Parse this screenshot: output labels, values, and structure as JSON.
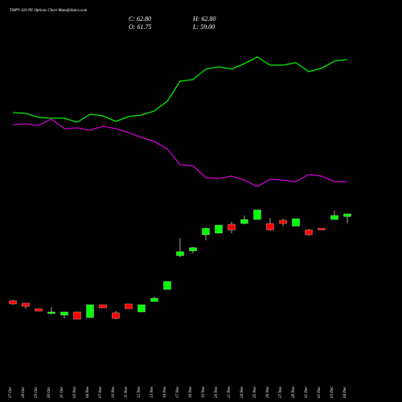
{
  "chart_data": {
    "type": "candlestick",
    "title": "TMPV 420 PE Options Chart MunafaSutra.com",
    "header": {
      "close": "C: 62.80",
      "open": "O: 61.75",
      "high": "H: 62.80",
      "low": "L: 59.00"
    },
    "categories": [
      "27 Oct",
      "28 Oct",
      "29 Oct",
      "30 Oct",
      "31 Oct",
      "03 Nov",
      "04 Nov",
      "07 Nov",
      "10 Nov",
      "11 Nov",
      "12 Nov",
      "13 Nov",
      "14 Nov",
      "17 Nov",
      "18 Nov",
      "19 Nov",
      "20 Nov",
      "21 Nov",
      "24 Nov",
      "25 Nov",
      "26 Nov",
      "27 Nov",
      "28 Nov",
      "01 Dec",
      "02 Dec",
      "03 Dec",
      "04 Dec"
    ],
    "up_color": "#00ff00",
    "down_color": "#ff0000",
    "open": [
      28.24,
      27.28,
      25.04,
      23.12,
      22.48,
      23.76,
      21.52,
      26.64,
      23.44,
      26.96,
      23.76,
      27.92,
      32.72,
      46.16,
      48.08,
      54.48,
      55.12,
      58.64,
      58.96,
      60.56,
      58.96,
      60.24,
      57.92,
      56.4,
      57.04,
      60.56,
      61.75
    ],
    "high": [
      28.56,
      27.28,
      25.04,
      25.68,
      23.76,
      23.76,
      26.64,
      26.64,
      24.08,
      26.96,
      26.64,
      29.84,
      35.92,
      53.2,
      49.68,
      57.36,
      58.32,
      59.6,
      62.16,
      64.4,
      61.2,
      60.88,
      60.88,
      56.72,
      57.04,
      64.08,
      62.8
    ],
    "low": [
      26.64,
      25.04,
      24.08,
      22.8,
      21.2,
      20.88,
      21.52,
      25.36,
      20.88,
      25.04,
      23.76,
      27.92,
      32.72,
      45.52,
      47.12,
      52.24,
      55.12,
      55.12,
      58.64,
      60.56,
      56.08,
      57.92,
      57.92,
      54.16,
      56.4,
      60.56,
      59.0
    ],
    "close": [
      26.96,
      26.0,
      24.08,
      23.76,
      23.76,
      20.88,
      26.64,
      25.36,
      21.2,
      25.04,
      26.64,
      29.2,
      35.92,
      47.76,
      49.36,
      57.04,
      58.32,
      56.4,
      60.56,
      64.4,
      56.4,
      58.96,
      60.88,
      54.48,
      56.4,
      62.16,
      62.8
    ],
    "ylim": [
      -12.08,
      147.92
    ],
    "y2lim": [
      0,
      100
    ],
    "series": [
      {
        "color": "#00ee00",
        "axis": "y2",
        "values": [
          72,
          71.8,
          70.8,
          70.6,
          70.6,
          69.6,
          71.6,
          71.2,
          69.8,
          71,
          71.4,
          72.4,
          74.8,
          79.8,
          80.2,
          82.8,
          83.4,
          82.8,
          84.2,
          85.8,
          83.8,
          83.8,
          84.4,
          82.2,
          83,
          84.8,
          85.2
        ]
      },
      {
        "color": "#cc00cc",
        "axis": "y2",
        "values": [
          69,
          69.2,
          68.8,
          70.4,
          68,
          68.2,
          67.6,
          68.6,
          68,
          67,
          65.8,
          64.8,
          63,
          59,
          58.8,
          55.8,
          55.6,
          56.2,
          55.2,
          53.6,
          55.4,
          55.2,
          54.8,
          56.6,
          56.2,
          54.8,
          54.8
        ]
      }
    ]
  }
}
